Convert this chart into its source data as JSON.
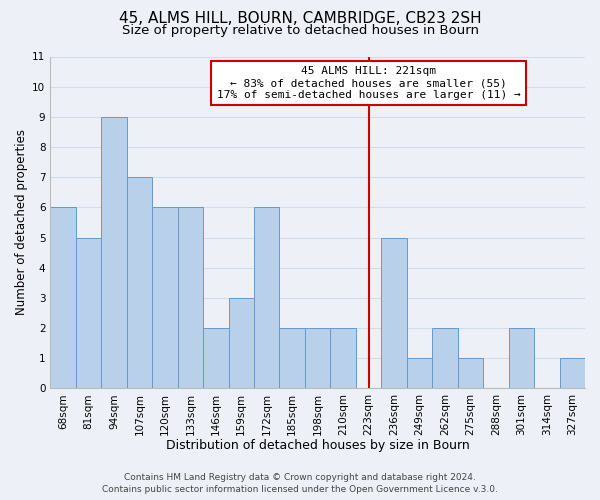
{
  "title": "45, ALMS HILL, BOURN, CAMBRIDGE, CB23 2SH",
  "subtitle": "Size of property relative to detached houses in Bourn",
  "xlabel": "Distribution of detached houses by size in Bourn",
  "ylabel": "Number of detached properties",
  "footer_line1": "Contains HM Land Registry data © Crown copyright and database right 2024.",
  "footer_line2": "Contains public sector information licensed under the Open Government Licence v.3.0.",
  "bin_labels": [
    "68sqm",
    "81sqm",
    "94sqm",
    "107sqm",
    "120sqm",
    "133sqm",
    "146sqm",
    "159sqm",
    "172sqm",
    "185sqm",
    "198sqm",
    "210sqm",
    "223sqm",
    "236sqm",
    "249sqm",
    "262sqm",
    "275sqm",
    "288sqm",
    "301sqm",
    "314sqm",
    "327sqm"
  ],
  "bar_values": [
    6,
    5,
    9,
    7,
    6,
    6,
    2,
    3,
    6,
    2,
    2,
    2,
    0,
    5,
    1,
    2,
    1,
    0,
    2,
    0,
    1
  ],
  "bar_color": "#b8d0ea",
  "bar_edge_color": "#6699cc",
  "reference_line_x_label": "223sqm",
  "reference_line_color": "#cc0000",
  "annotation_title": "45 ALMS HILL: 221sqm",
  "annotation_line1": "← 83% of detached houses are smaller (55)",
  "annotation_line2": "17% of semi-detached houses are larger (11) →",
  "annotation_box_color": "#ffffff",
  "annotation_border_color": "#cc0000",
  "ylim_max": 11,
  "yticks": [
    0,
    1,
    2,
    3,
    4,
    5,
    6,
    7,
    8,
    9,
    10,
    11
  ],
  "grid_color": "#d0dce8",
  "bg_color": "#edf1f7",
  "title_fontsize": 11,
  "subtitle_fontsize": 9.5,
  "xlabel_fontsize": 9,
  "ylabel_fontsize": 8.5,
  "tick_fontsize": 7.5,
  "annotation_fontsize": 8,
  "footer_fontsize": 6.5
}
